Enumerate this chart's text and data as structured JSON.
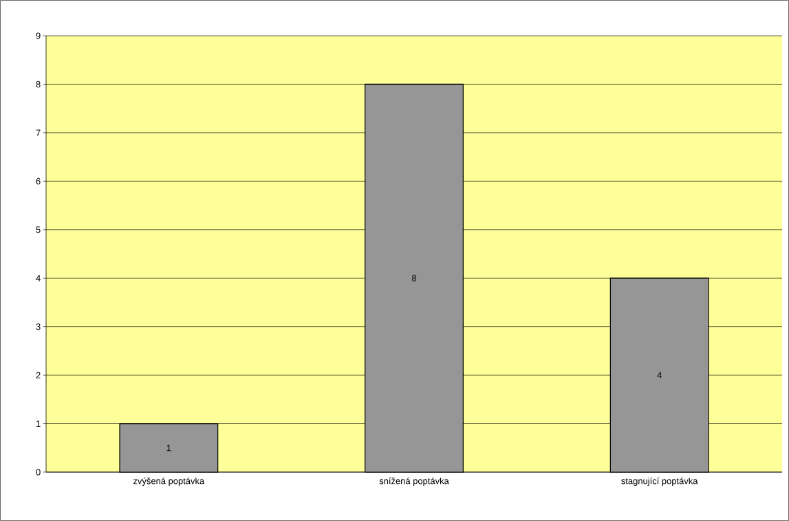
{
  "chart_data": {
    "type": "bar",
    "categories": [
      "zvýšená poptávka",
      "snížená poptávka",
      "stagnující poptávka"
    ],
    "values": [
      1,
      8,
      4
    ],
    "color": "#969696",
    "ylim": [
      0,
      9
    ],
    "yticks": [
      0,
      1,
      2,
      3,
      4,
      5,
      6,
      7,
      8,
      9
    ],
    "grid": "y",
    "data_labels": true
  }
}
